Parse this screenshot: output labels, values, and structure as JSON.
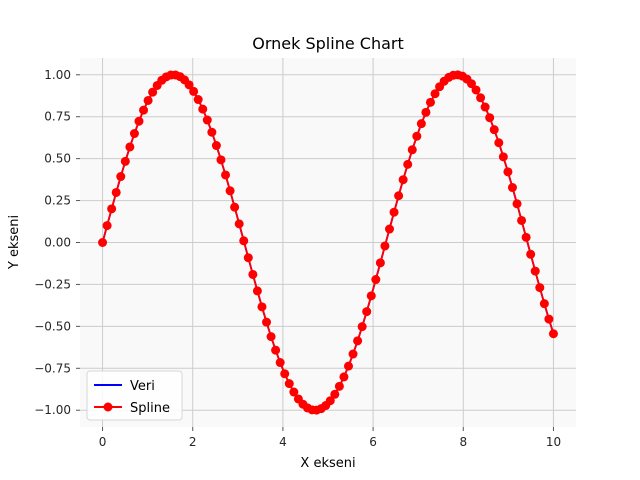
{
  "chart_data": {
    "type": "line",
    "title": "Ornek Spline Chart",
    "xlabel": "X ekseni",
    "ylabel": "Y ekseni",
    "xlim": [
      -0.5,
      10.5
    ],
    "ylim": [
      -1.1,
      1.1
    ],
    "x_ticks": [
      0,
      2,
      4,
      6,
      8,
      10
    ],
    "x_tick_labels": [
      "0",
      "2",
      "4",
      "6",
      "8",
      "10"
    ],
    "y_ticks": [
      -1.0,
      -0.75,
      -0.5,
      -0.25,
      0.0,
      0.25,
      0.5,
      0.75,
      1.0
    ],
    "y_tick_labels": [
      "−1.00",
      "−0.75",
      "−0.50",
      "−0.25",
      "0.00",
      "0.25",
      "0.50",
      "0.75",
      "1.00"
    ],
    "grid": true,
    "legend_position": "lower-left",
    "function": "sin(x)",
    "x_start": 0,
    "x_end": 10,
    "num_points": 100,
    "series": [
      {
        "name": "Veri",
        "color": "#0000ff",
        "marker": "none"
      },
      {
        "name": "Spline",
        "color": "#ff0000",
        "marker": "circle"
      }
    ],
    "background_color": "#f9f9f9",
    "grid_color": "#cccccc"
  }
}
